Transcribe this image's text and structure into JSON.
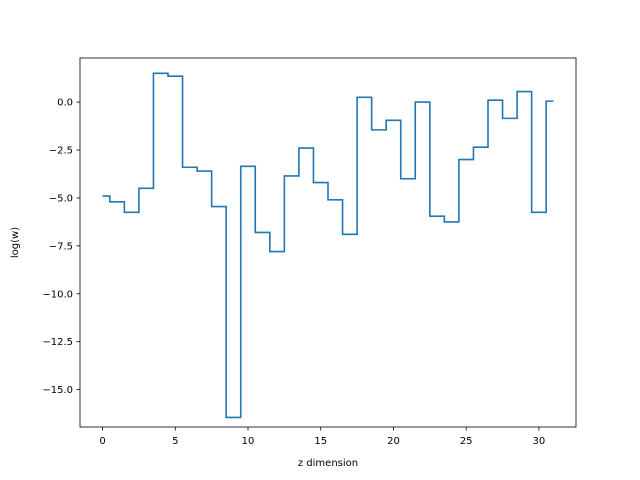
{
  "chart_data": {
    "type": "line",
    "drawstyle": "steps-mid",
    "title": "",
    "xlabel": "z dimension",
    "ylabel": "log(w)",
    "xlim": [
      -1.55,
      32.55
    ],
    "ylim": [
      -16.95,
      2.3
    ],
    "xticks": [
      0,
      5,
      10,
      15,
      20,
      25,
      30
    ],
    "xtick_labels": [
      "0",
      "5",
      "10",
      "15",
      "20",
      "25",
      "30"
    ],
    "yticks": [
      -15.0,
      -12.5,
      -10.0,
      -7.5,
      -5.0,
      -2.5,
      0.0
    ],
    "ytick_labels": [
      "−15.0",
      "−12.5",
      "−10.0",
      "−7.5",
      "−5.0",
      "−2.5",
      "0.0"
    ],
    "grid": false,
    "legend": "none",
    "series": [
      {
        "color": "#1f77b4",
        "x": [
          0,
          1,
          2,
          3,
          4,
          5,
          6,
          7,
          8,
          9,
          10,
          11,
          12,
          13,
          14,
          15,
          16,
          17,
          18,
          19,
          20,
          21,
          22,
          23,
          24,
          25,
          26,
          27,
          28,
          29,
          30,
          31
        ],
        "values": [
          -4.9,
          -5.2,
          -5.75,
          -4.5,
          1.5,
          1.35,
          -3.4,
          -3.6,
          -5.45,
          -16.45,
          -3.35,
          -6.8,
          -7.8,
          -3.85,
          -2.4,
          -4.2,
          -5.1,
          -6.9,
          0.25,
          -1.45,
          -0.95,
          -4.0,
          0.0,
          -5.95,
          -6.25,
          -3.0,
          -2.35,
          0.1,
          -0.85,
          0.55,
          -5.75,
          0.05
        ]
      }
    ]
  }
}
